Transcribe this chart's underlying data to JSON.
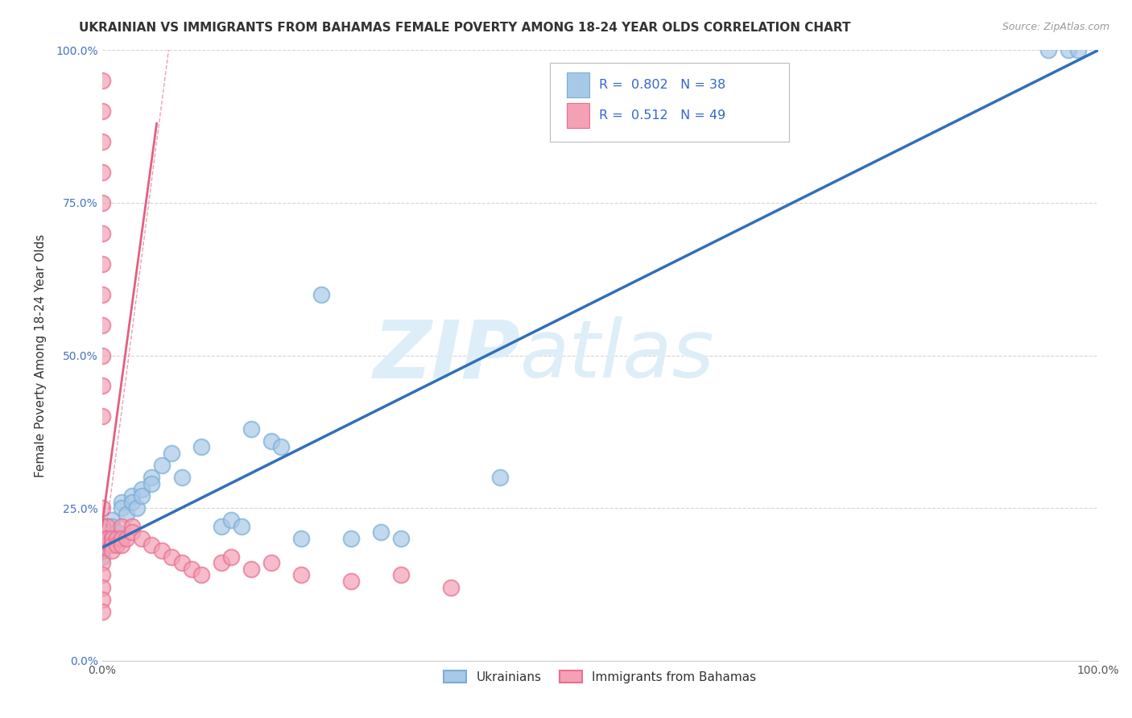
{
  "title": "UKRAINIAN VS IMMIGRANTS FROM BAHAMAS FEMALE POVERTY AMONG 18-24 YEAR OLDS CORRELATION CHART",
  "source": "Source: ZipAtlas.com",
  "ylabel": "Female Poverty Among 18-24 Year Olds",
  "xlim": [
    0,
    1.0
  ],
  "ylim": [
    0,
    1.0
  ],
  "xticks": [
    0,
    0.25,
    0.5,
    0.75,
    1.0
  ],
  "yticks": [
    0,
    0.25,
    0.5,
    0.75,
    1.0
  ],
  "xticklabels": [
    "0.0%",
    "",
    "",
    "",
    "100.0%"
  ],
  "yticklabels": [
    "0.0%",
    "25.0%",
    "50.0%",
    "75.0%",
    "100.0%"
  ],
  "watermark_zip": "ZIP",
  "watermark_atlas": "atlas",
  "blue_R": "0.802",
  "blue_N": "38",
  "pink_R": "0.512",
  "pink_N": "49",
  "blue_color": "#a8c8e8",
  "pink_color": "#f4a0b5",
  "blue_edge_color": "#7aafd4",
  "pink_edge_color": "#e87090",
  "blue_line_color": "#3070b8",
  "pink_line_color": "#e06080",
  "legend_blue_label": "Ukrainians",
  "legend_pink_label": "Immigrants from Bahamas",
  "blue_points_x": [
    0.0,
    0.0,
    0.0,
    0.0,
    0.0,
    0.01,
    0.01,
    0.015,
    0.015,
    0.02,
    0.02,
    0.025,
    0.03,
    0.03,
    0.035,
    0.04,
    0.04,
    0.05,
    0.05,
    0.06,
    0.07,
    0.08,
    0.1,
    0.12,
    0.13,
    0.14,
    0.15,
    0.17,
    0.18,
    0.2,
    0.22,
    0.25,
    0.28,
    0.3,
    0.4,
    0.95,
    0.97,
    0.98
  ],
  "blue_points_y": [
    0.21,
    0.2,
    0.19,
    0.18,
    0.17,
    0.23,
    0.22,
    0.21,
    0.2,
    0.26,
    0.25,
    0.24,
    0.27,
    0.26,
    0.25,
    0.28,
    0.27,
    0.3,
    0.29,
    0.32,
    0.34,
    0.3,
    0.35,
    0.22,
    0.23,
    0.22,
    0.38,
    0.36,
    0.35,
    0.2,
    0.6,
    0.2,
    0.21,
    0.2,
    0.3,
    1.0,
    1.0,
    1.0
  ],
  "pink_points_x": [
    0.0,
    0.0,
    0.0,
    0.0,
    0.0,
    0.0,
    0.0,
    0.0,
    0.0,
    0.0,
    0.0,
    0.0,
    0.0,
    0.0,
    0.0,
    0.0,
    0.0,
    0.0,
    0.0,
    0.0,
    0.0,
    0.005,
    0.005,
    0.01,
    0.01,
    0.01,
    0.015,
    0.015,
    0.02,
    0.02,
    0.02,
    0.025,
    0.03,
    0.03,
    0.04,
    0.05,
    0.06,
    0.07,
    0.08,
    0.09,
    0.1,
    0.12,
    0.13,
    0.15,
    0.17,
    0.2,
    0.25,
    0.3,
    0.35
  ],
  "pink_points_y": [
    0.95,
    0.9,
    0.85,
    0.8,
    0.75,
    0.7,
    0.65,
    0.6,
    0.55,
    0.5,
    0.45,
    0.4,
    0.25,
    0.22,
    0.2,
    0.18,
    0.16,
    0.14,
    0.12,
    0.1,
    0.08,
    0.22,
    0.2,
    0.2,
    0.19,
    0.18,
    0.2,
    0.19,
    0.22,
    0.2,
    0.19,
    0.2,
    0.22,
    0.21,
    0.2,
    0.19,
    0.18,
    0.17,
    0.16,
    0.15,
    0.14,
    0.16,
    0.17,
    0.15,
    0.16,
    0.14,
    0.13,
    0.14,
    0.12
  ],
  "grid_color": "#cccccc",
  "background_color": "#ffffff",
  "title_fontsize": 11,
  "axis_label_fontsize": 11,
  "tick_fontsize": 10,
  "watermark_color": "#ddeef8",
  "source_fontsize": 9,
  "blue_line_x0": 0.0,
  "blue_line_y0": 0.185,
  "blue_line_x1": 1.0,
  "blue_line_y1": 1.0,
  "pink_line_x0": 0.0,
  "pink_line_y0": 0.22,
  "pink_line_x1": 0.055,
  "pink_line_y1": 0.88
}
